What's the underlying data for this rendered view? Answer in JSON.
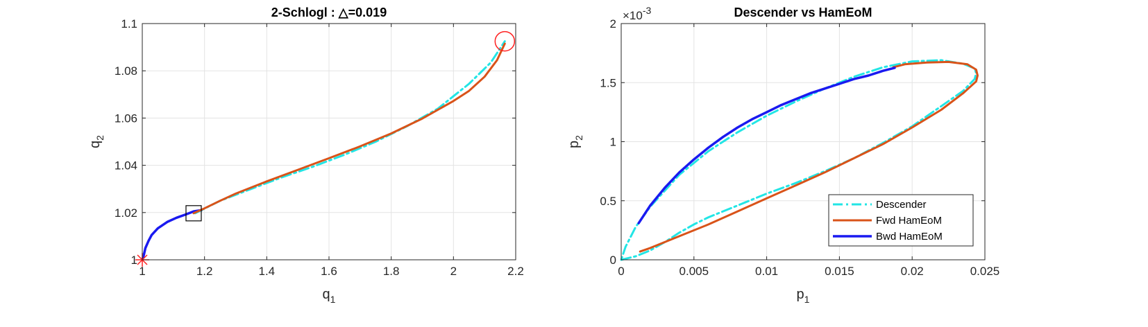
{
  "chart_data": [
    {
      "type": "line",
      "title": "2-Schlogl : △=0.019",
      "xlabel": "q",
      "xlabel_sub": "1",
      "ylabel": "q",
      "ylabel_sub": "2",
      "xlim": [
        1,
        2.2
      ],
      "ylim": [
        1,
        1.1
      ],
      "xticks": [
        "1",
        "1.2",
        "1.4",
        "1.6",
        "1.8",
        "2",
        "2.2"
      ],
      "yticks": [
        "1",
        "1.02",
        "1.04",
        "1.06",
        "1.08",
        "1.1"
      ],
      "grid": true,
      "colors": {
        "descender": "#22e5e5",
        "fwd": "#d95319",
        "bwd": "#1a1af0",
        "marker": "#ff2020",
        "box": "#000000"
      },
      "series": [
        {
          "key": "bwd",
          "style": "solid",
          "width": 3.5,
          "x": [
            1.0,
            1.005,
            1.01,
            1.02,
            1.03,
            1.05,
            1.08,
            1.11,
            1.14,
            1.165,
            1.19
          ],
          "y": [
            1.0,
            1.002,
            1.005,
            1.008,
            1.0105,
            1.0133,
            1.016,
            1.0178,
            1.0192,
            1.0205,
            1.021
          ]
        },
        {
          "key": "descender",
          "style": "dashdot",
          "width": 3,
          "x": [
            1.17,
            1.25,
            1.35,
            1.45,
            1.55,
            1.65,
            1.75,
            1.85,
            1.95,
            2.05,
            2.12,
            2.165
          ],
          "y": [
            1.0197,
            1.025,
            1.03,
            1.035,
            1.0395,
            1.0445,
            1.05,
            1.0565,
            1.064,
            1.0745,
            1.0835,
            1.0925
          ]
        },
        {
          "key": "fwd",
          "style": "solid",
          "width": 3,
          "x": [
            1.165,
            1.2,
            1.25,
            1.3,
            1.4,
            1.5,
            1.6,
            1.7,
            1.8,
            1.9,
            2.0,
            2.05,
            2.1,
            2.14,
            2.165
          ],
          "y": [
            1.0197,
            1.0218,
            1.025,
            1.028,
            1.0332,
            1.0381,
            1.043,
            1.048,
            1.0535,
            1.0598,
            1.0672,
            1.0715,
            1.0775,
            1.0845,
            1.0915
          ]
        }
      ],
      "markers": {
        "start": {
          "x": 1.0,
          "y": 1.0
        },
        "end": {
          "x": 2.165,
          "y": 1.0925
        },
        "box": {
          "x": 1.165,
          "y": 1.0197
        }
      }
    },
    {
      "type": "line",
      "title": "Descender vs HamEoM",
      "xlabel": "p",
      "xlabel_sub": "1",
      "ylabel": "p",
      "ylabel_sub": "2",
      "exponent_label": "×10",
      "exponent_power": "-3",
      "xlim": [
        0,
        0.025
      ],
      "ylim": [
        0,
        2
      ],
      "xticks": [
        "0",
        "0.005",
        "0.01",
        "0.015",
        "0.02",
        "0.025"
      ],
      "yticks": [
        "0",
        "0.5",
        "1",
        "1.5",
        "2"
      ],
      "grid": true,
      "legend_position": "bottom-right",
      "colors": {
        "descender": "#22e5e5",
        "fwd": "#d95319",
        "bwd": "#1a1af0"
      },
      "series": [
        {
          "key": "descender",
          "name": "Descender",
          "style": "dashdot",
          "width": 3,
          "x": [
            0.0,
            0.0005,
            0.001,
            0.002,
            0.003,
            0.004,
            0.005,
            0.006,
            0.008,
            0.01,
            0.012,
            0.014,
            0.016,
            0.018,
            0.02,
            0.022,
            0.0235,
            0.0243,
            0.0244,
            0.0243,
            0.0235,
            0.022,
            0.02,
            0.018,
            0.016,
            0.014,
            0.012,
            0.01,
            0.008,
            0.006,
            0.004,
            0.002,
            0.001,
            0.0003,
            0.0
          ],
          "y": [
            0.0,
            0.015,
            0.03,
            0.08,
            0.15,
            0.23,
            0.3,
            0.36,
            0.46,
            0.56,
            0.65,
            0.75,
            0.86,
            0.99,
            1.13,
            1.3,
            1.43,
            1.53,
            1.58,
            1.62,
            1.66,
            1.69,
            1.68,
            1.63,
            1.55,
            1.45,
            1.34,
            1.22,
            1.08,
            0.92,
            0.72,
            0.45,
            0.28,
            0.11,
            0.0
          ]
        },
        {
          "key": "fwd",
          "name": "Fwd HamEoM",
          "style": "solid",
          "width": 3,
          "x": [
            0.0013,
            0.002,
            0.004,
            0.006,
            0.008,
            0.01,
            0.012,
            0.014,
            0.016,
            0.018,
            0.02,
            0.022,
            0.0235,
            0.0244,
            0.0245,
            0.0244,
            0.0238,
            0.0225,
            0.021,
            0.0195,
            0.0187
          ],
          "y": [
            0.07,
            0.1,
            0.2,
            0.3,
            0.41,
            0.52,
            0.63,
            0.74,
            0.86,
            0.98,
            1.12,
            1.27,
            1.41,
            1.51,
            1.56,
            1.61,
            1.655,
            1.675,
            1.67,
            1.655,
            1.63
          ]
        },
        {
          "key": "bwd",
          "name": "Bwd HamEoM",
          "style": "solid",
          "width": 3.5,
          "x": [
            0.0012,
            0.002,
            0.003,
            0.004,
            0.005,
            0.006,
            0.007,
            0.008,
            0.009,
            0.01,
            0.011,
            0.012,
            0.013,
            0.014,
            0.015,
            0.016,
            0.017,
            0.018,
            0.0188
          ],
          "y": [
            0.31,
            0.46,
            0.61,
            0.74,
            0.85,
            0.95,
            1.04,
            1.12,
            1.19,
            1.25,
            1.31,
            1.36,
            1.41,
            1.45,
            1.49,
            1.53,
            1.56,
            1.6,
            1.625
          ]
        }
      ]
    }
  ]
}
